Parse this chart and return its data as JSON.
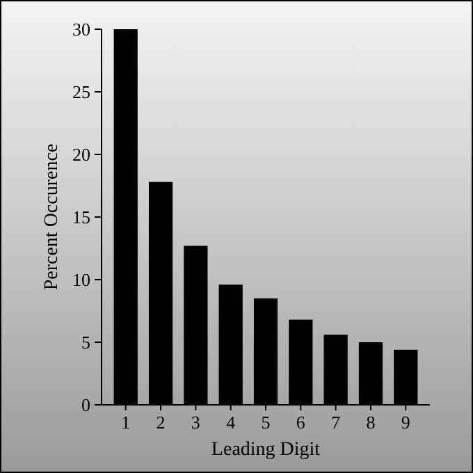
{
  "chart_data": {
    "type": "bar",
    "xlabel": "Leading Digit",
    "ylabel": "Percent Occurence",
    "categories": [
      "1",
      "2",
      "3",
      "4",
      "5",
      "6",
      "7",
      "8",
      "9"
    ],
    "values": [
      30,
      17.8,
      12.7,
      9.6,
      8.5,
      6.8,
      5.6,
      5.0,
      4.4
    ],
    "color": "#000000",
    "ylim": [
      0,
      30
    ],
    "yticks": [
      0,
      5,
      10,
      15,
      20,
      25,
      30
    ]
  }
}
